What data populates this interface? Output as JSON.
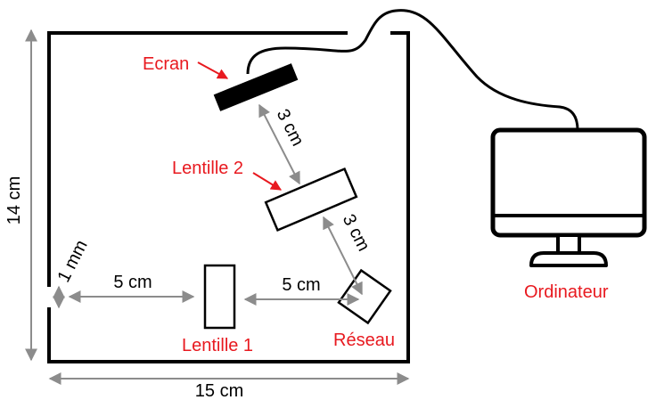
{
  "colors": {
    "label_red": "#e8191f",
    "dimension_gray": "#8c8c8c",
    "stroke_black": "#000000"
  },
  "labels": {
    "ecran": "Ecran",
    "lentille_2": "Lentille 2",
    "lentille_1": "Lentille 1",
    "reseau": "Réseau",
    "ordinateur": "Ordinateur"
  },
  "dimensions": {
    "height": "14 cm",
    "width": "15 cm",
    "slit_to_lens1": "5 cm",
    "lens1_to_grating": "5 cm",
    "grating_to_lens2": "3 cm",
    "lens2_to_screen": "3 cm",
    "slit_width": "1 mm"
  }
}
